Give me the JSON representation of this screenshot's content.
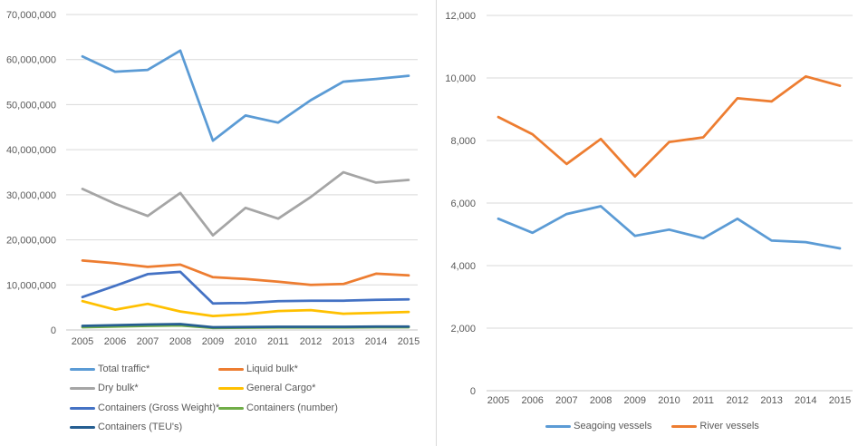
{
  "page": {
    "background": "#FFFFFF",
    "divider_color": "#D9D9D9",
    "gridline_color": "#D9D9D9",
    "axis_line_color": "#C6C6C6",
    "axis_text_color": "#595959"
  },
  "chart_data": [
    {
      "id": "cargo-traffic",
      "type": "line",
      "title": "",
      "xlabel": "",
      "ylabel": "",
      "categories": [
        "2005",
        "2006",
        "2007",
        "2008",
        "2009",
        "2010",
        "2011",
        "2012",
        "2013",
        "2014",
        "2015"
      ],
      "ylim": [
        0,
        70000000
      ],
      "ytick_step": 10000000,
      "grid": true,
      "legend_position": "bottom-left-two-columns",
      "series": [
        {
          "name": "Total traffic*",
          "color": "#5B9BD5",
          "values": [
            60700000,
            57300000,
            57700000,
            62000000,
            42000000,
            47600000,
            46000000,
            51000000,
            55100000,
            55700000,
            56400000
          ]
        },
        {
          "name": "Liquid bulk*",
          "color": "#ED7D31",
          "values": [
            15400000,
            14800000,
            14000000,
            14500000,
            11700000,
            11300000,
            10700000,
            10000000,
            10200000,
            12500000,
            12100000
          ]
        },
        {
          "name": "Dry bulk*",
          "color": "#A5A5A5",
          "values": [
            31300000,
            28000000,
            25300000,
            30400000,
            21000000,
            27100000,
            24700000,
            29500000,
            35000000,
            32700000,
            33300000
          ]
        },
        {
          "name": "General Cargo*",
          "color": "#FFC000",
          "values": [
            6400000,
            4500000,
            5800000,
            4100000,
            3100000,
            3500000,
            4200000,
            4400000,
            3600000,
            3800000,
            4000000
          ]
        },
        {
          "name": "Containers (Gross Weight)*",
          "color": "#4472C4",
          "values": [
            7300000,
            9800000,
            12400000,
            12900000,
            5900000,
            6000000,
            6400000,
            6500000,
            6500000,
            6700000,
            6800000
          ]
        },
        {
          "name": "Containers (number)",
          "color": "#70AD47",
          "values": [
            600000,
            750000,
            900000,
            1000000,
            450000,
            500000,
            550000,
            550000,
            550000,
            600000,
            600000
          ]
        },
        {
          "name": "Containers (TEU's)",
          "color": "#255E91",
          "values": [
            900000,
            1050000,
            1200000,
            1300000,
            600000,
            650000,
            700000,
            700000,
            700000,
            750000,
            750000
          ]
        }
      ]
    },
    {
      "id": "vessels",
      "type": "line",
      "title": "",
      "xlabel": "",
      "ylabel": "",
      "categories": [
        "2005",
        "2006",
        "2007",
        "2008",
        "2009",
        "2010",
        "2011",
        "2012",
        "2013",
        "2014",
        "2015"
      ],
      "ylim": [
        0,
        12000
      ],
      "ytick_step": 2000,
      "grid": true,
      "legend_position": "bottom-centered",
      "series": [
        {
          "name": "Seagoing vessels",
          "color": "#5B9BD5",
          "values": [
            5500,
            5050,
            5650,
            5900,
            4950,
            5150,
            4875,
            5500,
            4800,
            4750,
            4550
          ]
        },
        {
          "name": "River vessels",
          "color": "#ED7D31",
          "values": [
            8750,
            8200,
            7250,
            8050,
            6850,
            7950,
            8100,
            9350,
            9250,
            10050,
            9750
          ]
        }
      ]
    }
  ]
}
